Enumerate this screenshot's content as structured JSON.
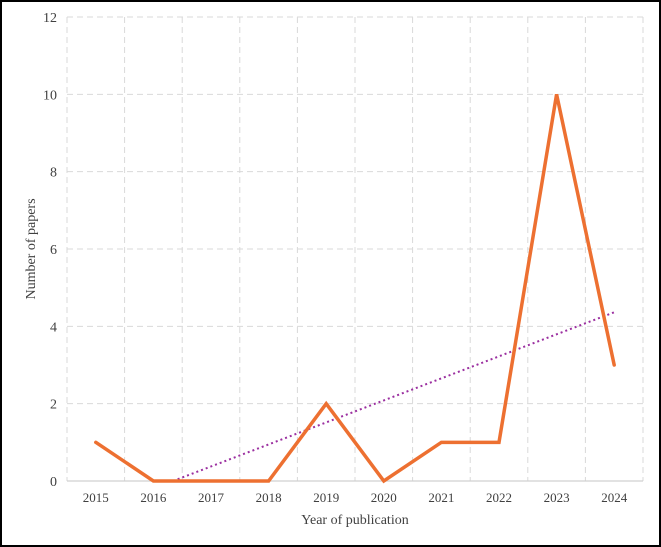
{
  "chart_data": {
    "type": "line",
    "title": "",
    "xlabel": "Year of publication",
    "ylabel": "Number of papers",
    "categories": [
      "2015",
      "2016",
      "2017",
      "2018",
      "2019",
      "2020",
      "2021",
      "2022",
      "2023",
      "2024"
    ],
    "series": [
      {
        "values": [
          1,
          0,
          0,
          0,
          2,
          0,
          1,
          1,
          10,
          3
        ],
        "color": "#ED7031",
        "style": "solid"
      }
    ],
    "trendline": {
      "type": "linear",
      "color": "#9B2FA0",
      "style": "dotted",
      "clip_min": 0
    },
    "ylim": [
      0,
      12
    ],
    "yticks": [
      0,
      2,
      4,
      6,
      8,
      10,
      12
    ],
    "grid": {
      "horizontal": true,
      "vertical": true,
      "style": "dashed",
      "color": "#D9D9D9"
    },
    "legend": "none"
  }
}
